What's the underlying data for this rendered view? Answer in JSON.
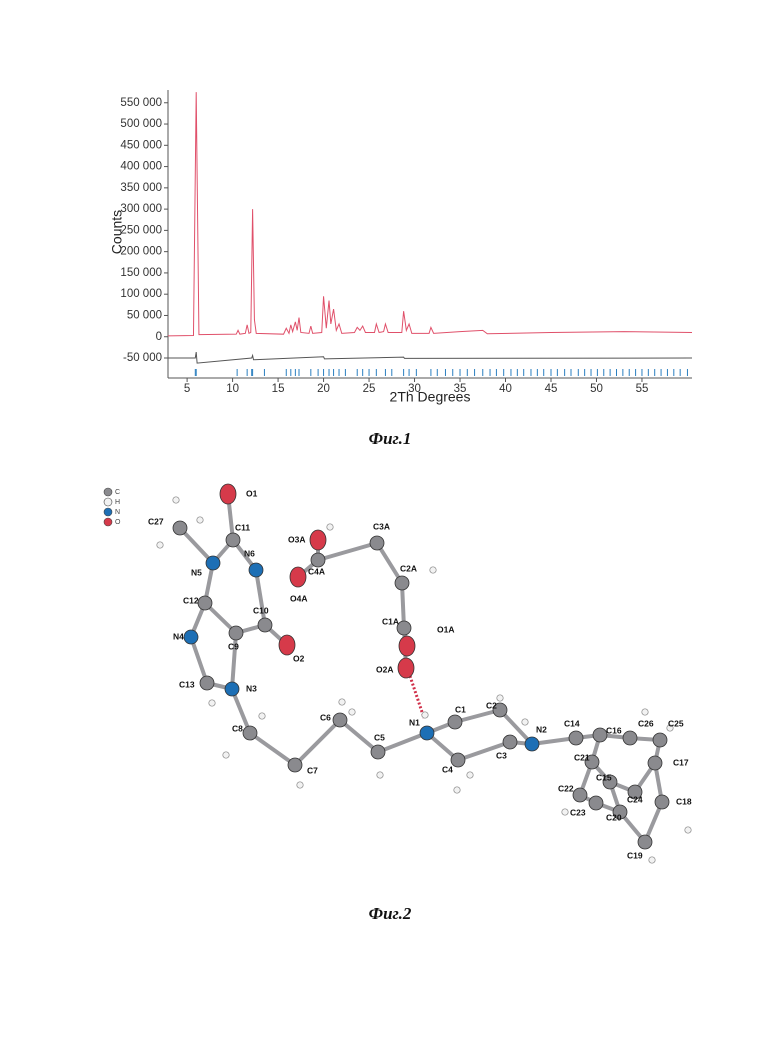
{
  "chart_data": {
    "type": "line",
    "ylabel": "Counts",
    "xlabel": "2Th Degrees",
    "xlim": [
      2.9,
      60.5
    ],
    "ylim": [
      -97000,
      580000
    ],
    "xticks": [
      5,
      10,
      15,
      20,
      25,
      30,
      35,
      40,
      45,
      50,
      55
    ],
    "yticks": [
      {
        "value": -50000,
        "label": "-50 000"
      },
      0,
      {
        "value": 50000,
        "label": "50 000"
      },
      {
        "value": 100000,
        "label": "100 000"
      },
      {
        "value": 150000,
        "label": "150 000"
      },
      {
        "value": 200000,
        "label": "200 000"
      },
      {
        "value": 250000,
        "label": "250 000"
      },
      {
        "value": 300000,
        "label": "300 000"
      },
      {
        "value": 350000,
        "label": "350 000"
      },
      {
        "value": 400000,
        "label": "400 000"
      },
      {
        "value": 450000,
        "label": "450 000"
      },
      {
        "value": 500000,
        "label": "500 000"
      },
      {
        "value": 550000,
        "label": "550 000"
      }
    ],
    "series": [
      {
        "color": "#e0506a",
        "x": [
          2.9,
          5.7,
          6.0,
          6.3,
          10.4,
          10.6,
          10.8,
          11.4,
          11.6,
          11.8,
          12.0,
          12.2,
          12.4,
          12.6,
          15.6,
          15.9,
          16.2,
          16.4,
          16.6,
          16.9,
          17.1,
          17.3,
          17.5,
          18.4,
          18.6,
          18.8,
          19.8,
          20.0,
          20.3,
          20.6,
          20.8,
          21.1,
          21.4,
          21.7,
          22.0,
          23.4,
          23.7,
          24.0,
          24.3,
          24.6,
          25.6,
          25.8,
          26.1,
          26.6,
          26.8,
          27.1,
          28.6,
          28.8,
          29.1,
          29.4,
          29.7,
          31.6,
          31.8,
          32.1,
          35.0,
          37.5,
          38.0,
          45.0,
          53.0,
          60.5
        ],
        "values": [
          2000,
          3000,
          575000,
          5000,
          6000,
          15000,
          6000,
          8000,
          28000,
          8000,
          10000,
          300000,
          40000,
          8000,
          6000,
          20000,
          8000,
          28000,
          12000,
          35000,
          15000,
          45000,
          10000,
          8000,
          25000,
          8000,
          10000,
          95000,
          20000,
          85000,
          30000,
          65000,
          15000,
          30000,
          8000,
          10000,
          22000,
          15000,
          25000,
          10000,
          10000,
          30000,
          10000,
          12000,
          30000,
          10000,
          10000,
          60000,
          15000,
          30000,
          8000,
          8000,
          22000,
          8000,
          12000,
          15000,
          7000,
          10000,
          12000,
          10000
        ]
      },
      {
        "color": "#555555",
        "x": [
          2.9,
          5.9,
          6.0,
          6.1,
          12.1,
          12.2,
          12.3,
          20.0,
          20.1,
          28.8,
          28.9,
          60.5
        ],
        "values": [
          -50000,
          -50000,
          -36000,
          -62000,
          -50000,
          -44000,
          -54000,
          -47000,
          -52000,
          -48000,
          -51000,
          -50000
        ]
      }
    ],
    "reflection_color": "#2a7fc0",
    "reflections": [
      5.9,
      6.0,
      10.5,
      11.6,
      12.1,
      12.2,
      13.5,
      15.9,
      16.4,
      16.9,
      17.3,
      18.6,
      19.4,
      20.0,
      20.6,
      21.1,
      21.7,
      22.4,
      23.7,
      24.3,
      25.0,
      25.8,
      26.8,
      27.5,
      28.8,
      29.4,
      30.2,
      31.8,
      32.5,
      33.4,
      34.2,
      35.0,
      35.8,
      36.6,
      37.5,
      38.3,
      39.0,
      39.8,
      40.6,
      41.3,
      42.0,
      42.8,
      43.5,
      44.2,
      45.0,
      45.7,
      46.5,
      47.2,
      48.0,
      48.7,
      49.4,
      50.1,
      50.8,
      51.5,
      52.2,
      52.9,
      53.6,
      54.3,
      55.0,
      55.7,
      56.4,
      57.1,
      57.8,
      58.5,
      59.2,
      60.0
    ]
  },
  "figure1": {
    "caption": "Фиг.1"
  },
  "figure2": {
    "caption": "Фиг.2",
    "legend": [
      "C",
      "H",
      "N",
      "O"
    ],
    "atoms": [
      "C27",
      "N5",
      "C11",
      "O1",
      "N6",
      "C10",
      "O2",
      "C9",
      "C12",
      "N4",
      "C13",
      "N3",
      "C8",
      "C7",
      "C6",
      "C5",
      "N1",
      "C1",
      "C2",
      "C3",
      "C4",
      "N2",
      "C14",
      "C16",
      "C21",
      "C15",
      "C22",
      "C23",
      "C20",
      "C24",
      "C17",
      "C18",
      "C19",
      "C26",
      "C25",
      "O3A",
      "C4A",
      "O4A",
      "C3A",
      "C2A",
      "C1A",
      "O1A",
      "O2A"
    ]
  }
}
